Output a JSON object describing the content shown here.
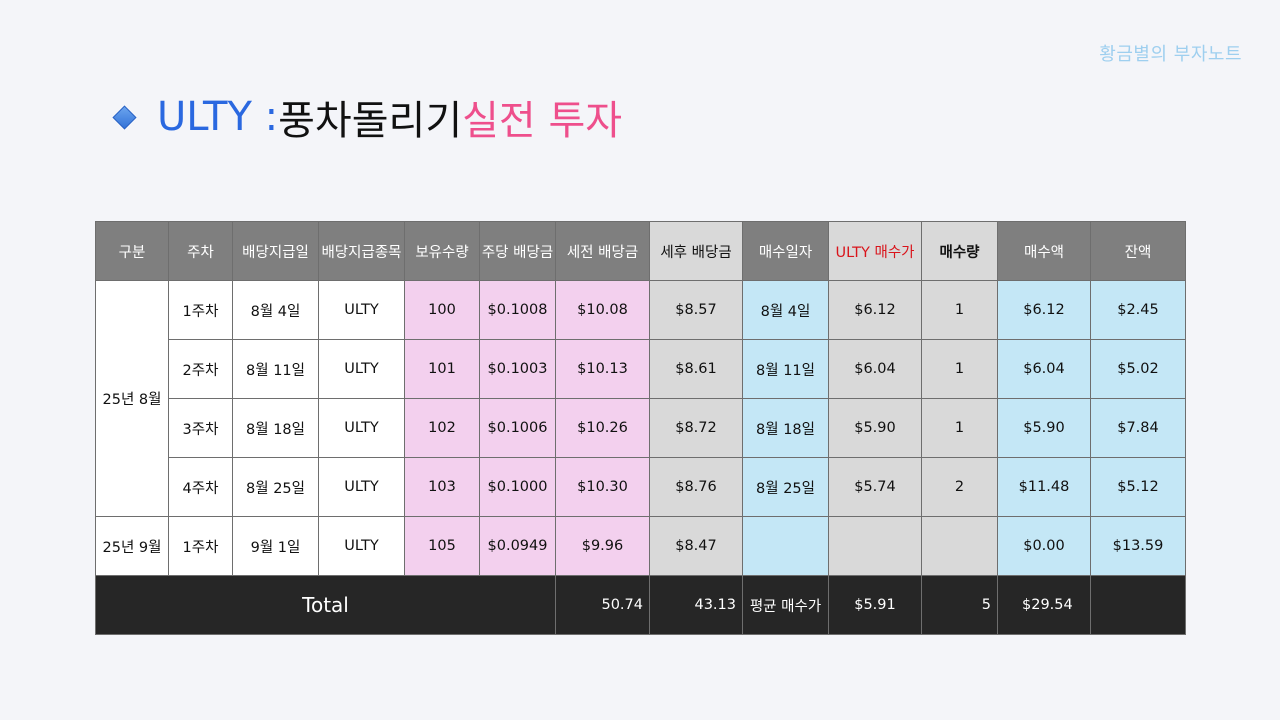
{
  "brand": "황금별의 부자노트",
  "title": {
    "part1": "ULTY : ",
    "part2": "풍차돌리기 ",
    "part3": "실전 투자"
  },
  "table": {
    "headers": [
      "구분",
      "주차",
      "배당지급일",
      "배당지급종목",
      "보유수량",
      "주당 배당금",
      "세전 배당금",
      "세후 배당금",
      "매수일자",
      "ULTY 매수가",
      "매수량",
      "매수액",
      "잔액"
    ],
    "groups": [
      {
        "label": "25년 8월",
        "rows": [
          {
            "week": "1주차",
            "pay_date": "8월 4일",
            "ticker": "ULTY",
            "shares": "100",
            "dps": "$0.1008",
            "pretax": "$10.08",
            "posttax": "$8.57",
            "buy_date": "8월 4일",
            "price": "$6.12",
            "qty": "1",
            "amount": "$6.12",
            "balance": "$2.45"
          },
          {
            "week": "2주차",
            "pay_date": "8월 11일",
            "ticker": "ULTY",
            "shares": "101",
            "dps": "$0.1003",
            "pretax": "$10.13",
            "posttax": "$8.61",
            "buy_date": "8월 11일",
            "price": "$6.04",
            "qty": "1",
            "amount": "$6.04",
            "balance": "$5.02"
          },
          {
            "week": "3주차",
            "pay_date": "8월 18일",
            "ticker": "ULTY",
            "shares": "102",
            "dps": "$0.1006",
            "pretax": "$10.26",
            "posttax": "$8.72",
            "buy_date": "8월 18일",
            "price": "$5.90",
            "qty": "1",
            "amount": "$5.90",
            "balance": "$7.84"
          },
          {
            "week": "4주차",
            "pay_date": "8월 25일",
            "ticker": "ULTY",
            "shares": "103",
            "dps": "$0.1000",
            "pretax": "$10.30",
            "posttax": "$8.76",
            "buy_date": "8월 25일",
            "price": "$5.74",
            "qty": "2",
            "amount": "$11.48",
            "balance": "$5.12"
          }
        ]
      },
      {
        "label": "25년 9월",
        "rows": [
          {
            "week": "1주차",
            "pay_date": "9월 1일",
            "ticker": "ULTY",
            "shares": "105",
            "dps": "$0.0949",
            "pretax": "$9.96",
            "posttax": "$8.47",
            "buy_date": "",
            "price": "",
            "qty": "",
            "amount": "$0.00",
            "balance": "$13.59"
          }
        ]
      }
    ],
    "total": {
      "label": "Total",
      "pretax": "50.74",
      "posttax": "43.13",
      "avg_label": "평균 매수가",
      "avg_price": "$5.91",
      "qty": "5",
      "amount": "$29.54",
      "balance": ""
    }
  }
}
